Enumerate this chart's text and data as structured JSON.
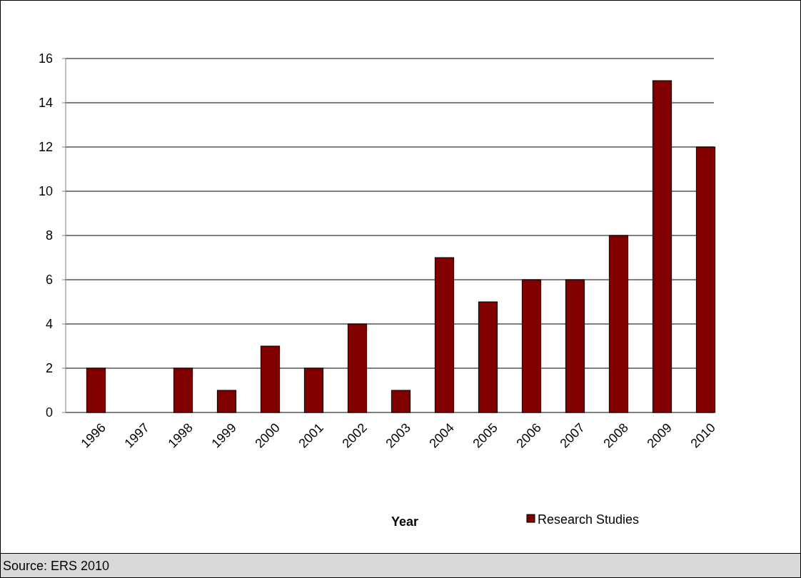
{
  "chart_data": {
    "type": "bar",
    "xlabel": "Year",
    "categories": [
      "1996",
      "1997",
      "1998",
      "1999",
      "2000",
      "2001",
      "2002",
      "2003",
      "2004",
      "2005",
      "2006",
      "2007",
      "2008",
      "2009",
      "2010"
    ],
    "series": [
      {
        "name": "Research Studies",
        "color": "#800000",
        "values": [
          2,
          0,
          2,
          1,
          3,
          2,
          4,
          1,
          7,
          5,
          6,
          6,
          8,
          15,
          12
        ]
      }
    ],
    "ylim": [
      0,
      16
    ],
    "yticks": [
      0,
      2,
      4,
      6,
      8,
      10,
      12,
      14,
      16
    ],
    "grid": "y",
    "legend": "bottom",
    "annotations": [
      "Source: ERS 2010"
    ]
  }
}
